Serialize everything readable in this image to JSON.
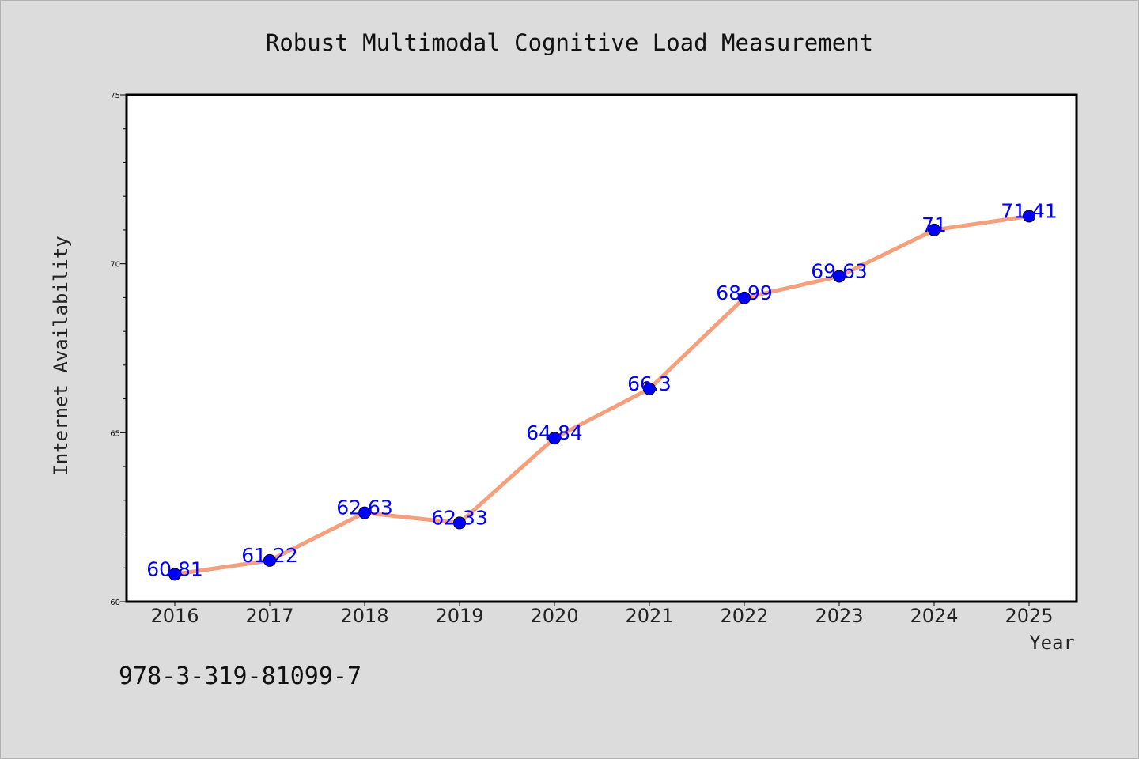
{
  "chart_data": {
    "type": "line",
    "title": "Robust Multimodal Cognitive Load Measurement",
    "xlabel": "Year",
    "ylabel": "Internet Availability",
    "x": [
      "2016",
      "2017",
      "2018",
      "2019",
      "2020",
      "2021",
      "2022",
      "2023",
      "2024",
      "2025"
    ],
    "series": [
      {
        "values": [
          60.81,
          61.22,
          62.63,
          62.33,
          64.84,
          66.3,
          68.99,
          69.63,
          71,
          71.41
        ],
        "data_labels": [
          "60.81",
          "61.22",
          "62.63",
          "62.33",
          "64.84",
          "66.3",
          "68.99",
          "69.63",
          "71",
          "71.41"
        ]
      }
    ],
    "ylim": [
      60,
      75
    ],
    "yticks": [
      "60",
      "65",
      "70",
      "75"
    ],
    "y_minor_step": 1,
    "grid": false,
    "line_color": "#f4a07c",
    "marker_color": "#0000ff",
    "label_color": "#0000ff",
    "background_color": "#dcdcdc",
    "plot_background_color": "#ffffff"
  },
  "footer": {
    "isbn": "978-3-319-81099-7"
  }
}
